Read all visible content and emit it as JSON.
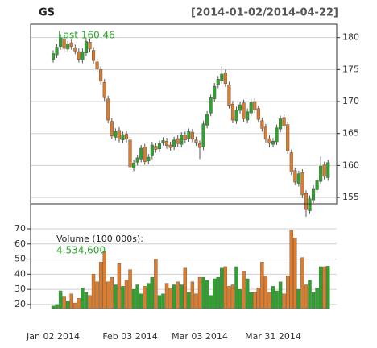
{
  "chart_data": {
    "type": "candlestick",
    "title": "GS",
    "date_range": "[2014-01-02/2014-04-22]",
    "last_label": "Last 160.46",
    "volume_title": "Volume (100,000s):",
    "last_volume_label": "4,534,600",
    "up_color": "#2aa52a",
    "down_color": "#e07b28",
    "grid": true,
    "categories": [
      "Jan 02 2014",
      null,
      null,
      null,
      null,
      null,
      null,
      null,
      null,
      null,
      null,
      null,
      null,
      null,
      null,
      null,
      null,
      null,
      null,
      null,
      null,
      "Feb 03 2014",
      null,
      null,
      null,
      null,
      null,
      null,
      null,
      null,
      null,
      null,
      null,
      null,
      null,
      null,
      null,
      null,
      null,
      null,
      "Mar 03 2014",
      null,
      null,
      null,
      null,
      null,
      null,
      null,
      null,
      null,
      null,
      null,
      null,
      null,
      null,
      null,
      null,
      null,
      null,
      null,
      "Mar 31 2014",
      null,
      null,
      null,
      null,
      null,
      null,
      null,
      null,
      null,
      null,
      null,
      null,
      null,
      null,
      null
    ],
    "open": [
      176.6,
      177.3,
      178.6,
      179.8,
      178.2,
      179.2,
      178.4,
      177.8,
      176.5,
      177.6,
      179.3,
      178.0,
      176.2,
      175.0,
      173.0,
      170.4,
      166.9,
      164.4,
      165.5,
      164.0,
      164.9,
      164.0,
      159.6,
      160.5,
      161.0,
      162.9,
      160.7,
      161.5,
      163.0,
      162.6,
      163.6,
      163.8,
      163.2,
      162.9,
      164.2,
      163.3,
      164.8,
      164.2,
      165.2,
      164.0,
      163.4,
      162.9,
      166.3,
      168.2,
      170.4,
      172.6,
      173.3,
      174.5,
      172.6,
      169.6,
      167.0,
      168.6,
      169.8,
      167.1,
      168.2,
      170.0,
      168.9,
      167.0,
      166.0,
      164.2,
      163.3,
      163.7,
      165.7,
      167.5,
      166.4,
      162.0,
      159.2,
      157.2,
      158.9,
      155.6,
      152.9,
      154.6,
      156.2,
      157.5,
      160.1,
      158.1
    ],
    "high": [
      178.0,
      179.0,
      180.5,
      180.3,
      179.5,
      179.7,
      178.9,
      178.3,
      178.3,
      179.9,
      179.8,
      178.5,
      176.7,
      175.5,
      173.5,
      170.9,
      167.4,
      165.8,
      166.0,
      165.3,
      165.4,
      164.5,
      160.9,
      161.7,
      163.2,
      163.4,
      161.8,
      163.7,
      163.5,
      163.9,
      164.4,
      164.3,
      163.7,
      164.5,
      164.7,
      165.2,
      165.3,
      165.8,
      165.7,
      164.5,
      163.9,
      167.0,
      168.5,
      171.1,
      172.9,
      174.0,
      175.5,
      175.0,
      173.1,
      170.1,
      169.2,
      170.0,
      170.3,
      168.9,
      170.4,
      170.5,
      169.4,
      167.5,
      166.5,
      164.7,
      164.3,
      166.4,
      167.8,
      168.0,
      166.9,
      162.5,
      159.7,
      159.2,
      159.4,
      156.1,
      155.3,
      156.9,
      158.1,
      161.4,
      160.6,
      160.9
    ],
    "low": [
      176.1,
      176.8,
      178.1,
      177.8,
      177.7,
      178.1,
      177.4,
      176.1,
      176.0,
      177.1,
      177.7,
      175.9,
      174.6,
      172.7,
      170.1,
      166.6,
      164.1,
      163.9,
      163.6,
      163.5,
      163.6,
      159.3,
      159.1,
      160.0,
      160.5,
      160.1,
      160.2,
      161.0,
      162.0,
      162.1,
      163.1,
      162.6,
      162.3,
      162.4,
      162.9,
      162.8,
      163.5,
      163.7,
      163.6,
      163.1,
      161.0,
      162.4,
      165.8,
      167.7,
      169.9,
      172.1,
      172.8,
      172.3,
      168.9,
      166.6,
      166.5,
      168.1,
      166.8,
      166.6,
      167.7,
      168.2,
      166.7,
      165.3,
      163.6,
      162.8,
      162.8,
      163.2,
      165.2,
      165.7,
      161.8,
      158.5,
      156.9,
      156.7,
      154.9,
      152.0,
      152.4,
      154.1,
      155.7,
      157.0,
      157.8,
      157.6
    ],
    "close": [
      177.5,
      178.5,
      180.0,
      178.3,
      179.0,
      178.6,
      177.9,
      176.6,
      177.8,
      179.4,
      178.2,
      176.4,
      175.1,
      173.2,
      170.6,
      167.1,
      164.6,
      165.3,
      164.1,
      164.8,
      164.1,
      159.8,
      160.4,
      161.2,
      162.7,
      160.6,
      161.3,
      163.2,
      162.5,
      163.4,
      163.9,
      163.1,
      162.8,
      164.0,
      163.4,
      164.7,
      164.0,
      165.3,
      164.1,
      163.6,
      162.8,
      166.5,
      168.0,
      170.6,
      172.4,
      173.5,
      174.3,
      172.8,
      169.4,
      167.1,
      168.7,
      169.5,
      167.3,
      168.4,
      169.9,
      168.7,
      167.2,
      165.8,
      164.1,
      163.5,
      163.8,
      165.9,
      167.3,
      166.2,
      162.3,
      159.0,
      157.4,
      158.7,
      155.4,
      153.1,
      154.8,
      156.4,
      157.6,
      159.9,
      158.3,
      160.46
    ],
    "volume": [
      19,
      20,
      29,
      25,
      22,
      27,
      21,
      24,
      31,
      28,
      26,
      40,
      35,
      48,
      55,
      35,
      38,
      33,
      47,
      32,
      36,
      43,
      30,
      33,
      27,
      32,
      34,
      38,
      50,
      26,
      27,
      34,
      31,
      33,
      35,
      33,
      44,
      28,
      35,
      27,
      38,
      38,
      36,
      26,
      37,
      38,
      44,
      45,
      32,
      33,
      45,
      30,
      42,
      37,
      28,
      28,
      31,
      48,
      39,
      28,
      32,
      29,
      35,
      27,
      39,
      69,
      64,
      30,
      51,
      33,
      36,
      28,
      31,
      45,
      45,
      45.346
    ],
    "ylim": [
      154,
      182.1
    ],
    "yticks": [
      155,
      160,
      165,
      170,
      175,
      180
    ],
    "volume_ylim": [
      17.3,
      86.5
    ],
    "volume_yticks": [
      20,
      30,
      40,
      50,
      60,
      70
    ]
  }
}
